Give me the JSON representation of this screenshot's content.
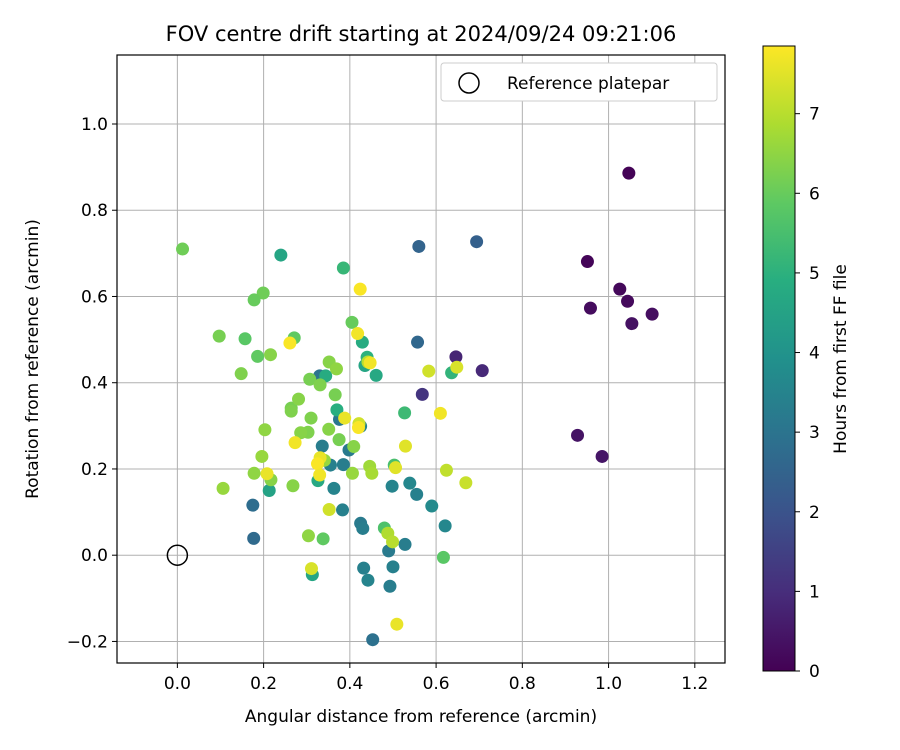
{
  "chart_data": {
    "type": "scatter",
    "title": "FOV centre drift starting at 2024/09/24 09:21:06",
    "xlabel": "Angular distance from reference (arcmin)",
    "ylabel": "Rotation from reference (arcmin)",
    "xlim": [
      -0.14,
      1.27
    ],
    "ylim": [
      -0.25,
      1.16
    ],
    "xticks": [
      "0.0",
      "0.2",
      "0.4",
      "0.6",
      "0.8",
      "1.0",
      "1.2"
    ],
    "yticks": [
      "−0.2",
      "0.0",
      "0.2",
      "0.4",
      "0.6",
      "0.8",
      "1.0"
    ],
    "grid": true,
    "legend": {
      "position": "top-right",
      "label": "Reference platepar"
    },
    "reference_point": {
      "x": 0.0,
      "y": 0.0
    },
    "colorbar": {
      "label": "Hours from first FF file",
      "range": [
        0,
        7.85
      ],
      "ticks": [
        "0",
        "1",
        "2",
        "3",
        "4",
        "5",
        "6",
        "7"
      ],
      "colormap": "viridis"
    },
    "points": [
      {
        "x": 1.047,
        "y": 0.886,
        "h": 0.05
      },
      {
        "x": 0.951,
        "y": 0.681,
        "h": 0.1
      },
      {
        "x": 1.026,
        "y": 0.617,
        "h": 0.15
      },
      {
        "x": 1.044,
        "y": 0.589,
        "h": 0.2
      },
      {
        "x": 0.958,
        "y": 0.573,
        "h": 0.25
      },
      {
        "x": 1.101,
        "y": 0.559,
        "h": 0.3
      },
      {
        "x": 1.054,
        "y": 0.537,
        "h": 0.35
      },
      {
        "x": 0.928,
        "y": 0.278,
        "h": 0.4
      },
      {
        "x": 0.985,
        "y": 0.229,
        "h": 0.45
      },
      {
        "x": 0.646,
        "y": 0.46,
        "h": 0.8
      },
      {
        "x": 0.707,
        "y": 0.428,
        "h": 0.9
      },
      {
        "x": 0.568,
        "y": 0.373,
        "h": 1.2
      },
      {
        "x": 0.694,
        "y": 0.727,
        "h": 2.4
      },
      {
        "x": 0.56,
        "y": 0.716,
        "h": 2.5
      },
      {
        "x": 0.557,
        "y": 0.494,
        "h": 2.6
      },
      {
        "x": 0.177,
        "y": 0.039,
        "h": 2.7
      },
      {
        "x": 0.175,
        "y": 0.116,
        "h": 2.8
      },
      {
        "x": 0.453,
        "y": -0.196,
        "h": 2.9
      },
      {
        "x": 0.33,
        "y": 0.416,
        "h": 3.0
      },
      {
        "x": 0.376,
        "y": 0.315,
        "h": 3.1
      },
      {
        "x": 0.398,
        "y": 0.244,
        "h": 3.2
      },
      {
        "x": 0.336,
        "y": 0.253,
        "h": 3.3
      },
      {
        "x": 0.383,
        "y": 0.105,
        "h": 3.4
      },
      {
        "x": 0.363,
        "y": 0.155,
        "h": 3.5
      },
      {
        "x": 0.385,
        "y": 0.21,
        "h": 3.3
      },
      {
        "x": 0.355,
        "y": 0.209,
        "h": 3.4
      },
      {
        "x": 0.425,
        "y": 0.074,
        "h": 3.2
      },
      {
        "x": 0.43,
        "y": 0.062,
        "h": 3.3
      },
      {
        "x": 0.432,
        "y": -0.03,
        "h": 3.4
      },
      {
        "x": 0.442,
        "y": -0.058,
        "h": 3.5
      },
      {
        "x": 0.49,
        "y": 0.01,
        "h": 3.2
      },
      {
        "x": 0.493,
        "y": -0.072,
        "h": 3.3
      },
      {
        "x": 0.5,
        "y": -0.027,
        "h": 3.4
      },
      {
        "x": 0.498,
        "y": 0.16,
        "h": 3.5
      },
      {
        "x": 0.528,
        "y": 0.025,
        "h": 3.3
      },
      {
        "x": 0.539,
        "y": 0.167,
        "h": 3.6
      },
      {
        "x": 0.555,
        "y": 0.141,
        "h": 3.4
      },
      {
        "x": 0.59,
        "y": 0.114,
        "h": 3.7
      },
      {
        "x": 0.621,
        "y": 0.068,
        "h": 3.6
      },
      {
        "x": 0.425,
        "y": 0.299,
        "h": 3.5
      },
      {
        "x": 0.213,
        "y": 0.15,
        "h": 4.5
      },
      {
        "x": 0.313,
        "y": -0.045,
        "h": 4.6
      },
      {
        "x": 0.326,
        "y": 0.173,
        "h": 4.7
      },
      {
        "x": 0.435,
        "y": 0.44,
        "h": 4.6
      },
      {
        "x": 0.429,
        "y": 0.494,
        "h": 4.8
      },
      {
        "x": 0.37,
        "y": 0.337,
        "h": 4.9
      },
      {
        "x": 0.461,
        "y": 0.417,
        "h": 4.7
      },
      {
        "x": 0.344,
        "y": 0.416,
        "h": 4.8
      },
      {
        "x": 0.24,
        "y": 0.696,
        "h": 4.6
      },
      {
        "x": 0.385,
        "y": 0.666,
        "h": 5.2
      },
      {
        "x": 0.636,
        "y": 0.423,
        "h": 5.1
      },
      {
        "x": 0.527,
        "y": 0.33,
        "h": 5.3
      },
      {
        "x": 0.44,
        "y": 0.459,
        "h": 5.0
      },
      {
        "x": 0.503,
        "y": 0.209,
        "h": 5.5
      },
      {
        "x": 0.48,
        "y": 0.063,
        "h": 5.6
      },
      {
        "x": 0.338,
        "y": 0.038,
        "h": 5.9
      },
      {
        "x": 0.617,
        "y": -0.005,
        "h": 5.8
      },
      {
        "x": 0.405,
        "y": 0.54,
        "h": 6.0
      },
      {
        "x": 0.271,
        "y": 0.504,
        "h": 5.9
      },
      {
        "x": 0.157,
        "y": 0.502,
        "h": 5.8
      },
      {
        "x": 0.186,
        "y": 0.461,
        "h": 5.9
      },
      {
        "x": 0.199,
        "y": 0.608,
        "h": 6.1
      },
      {
        "x": 0.178,
        "y": 0.592,
        "h": 6.0
      },
      {
        "x": 0.012,
        "y": 0.71,
        "h": 6.1
      },
      {
        "x": 0.097,
        "y": 0.508,
        "h": 6.2
      },
      {
        "x": 0.148,
        "y": 0.421,
        "h": 6.3
      },
      {
        "x": 0.216,
        "y": 0.465,
        "h": 6.4
      },
      {
        "x": 0.264,
        "y": 0.341,
        "h": 6.2
      },
      {
        "x": 0.264,
        "y": 0.334,
        "h": 6.3
      },
      {
        "x": 0.281,
        "y": 0.362,
        "h": 6.4
      },
      {
        "x": 0.307,
        "y": 0.408,
        "h": 6.2
      },
      {
        "x": 0.331,
        "y": 0.395,
        "h": 6.3
      },
      {
        "x": 0.352,
        "y": 0.448,
        "h": 6.4
      },
      {
        "x": 0.366,
        "y": 0.372,
        "h": 6.2
      },
      {
        "x": 0.31,
        "y": 0.318,
        "h": 6.3
      },
      {
        "x": 0.351,
        "y": 0.292,
        "h": 6.4
      },
      {
        "x": 0.375,
        "y": 0.268,
        "h": 6.2
      },
      {
        "x": 0.303,
        "y": 0.285,
        "h": 6.3
      },
      {
        "x": 0.286,
        "y": 0.284,
        "h": 6.4
      },
      {
        "x": 0.203,
        "y": 0.291,
        "h": 6.5
      },
      {
        "x": 0.196,
        "y": 0.229,
        "h": 6.6
      },
      {
        "x": 0.217,
        "y": 0.175,
        "h": 6.4
      },
      {
        "x": 0.178,
        "y": 0.19,
        "h": 6.5
      },
      {
        "x": 0.106,
        "y": 0.155,
        "h": 6.6
      },
      {
        "x": 0.268,
        "y": 0.161,
        "h": 6.4
      },
      {
        "x": 0.304,
        "y": 0.045,
        "h": 6.5
      },
      {
        "x": 0.341,
        "y": 0.22,
        "h": 6.6
      },
      {
        "x": 0.369,
        "y": 0.432,
        "h": 6.5
      },
      {
        "x": 0.409,
        "y": 0.252,
        "h": 6.4
      },
      {
        "x": 0.406,
        "y": 0.19,
        "h": 6.6
      },
      {
        "x": 0.446,
        "y": 0.206,
        "h": 6.7
      },
      {
        "x": 0.451,
        "y": 0.19,
        "h": 6.8
      },
      {
        "x": 0.442,
        "y": 0.448,
        "h": 7.0
      },
      {
        "x": 0.488,
        "y": 0.051,
        "h": 6.9
      },
      {
        "x": 0.499,
        "y": 0.031,
        "h": 7.0
      },
      {
        "x": 0.624,
        "y": 0.197,
        "h": 7.1
      },
      {
        "x": 0.669,
        "y": 0.168,
        "h": 7.2
      },
      {
        "x": 0.583,
        "y": 0.427,
        "h": 7.3
      },
      {
        "x": 0.648,
        "y": 0.436,
        "h": 7.4
      },
      {
        "x": 0.421,
        "y": 0.305,
        "h": 7.3
      },
      {
        "x": 0.311,
        "y": -0.031,
        "h": 7.4
      },
      {
        "x": 0.352,
        "y": 0.106,
        "h": 7.3
      },
      {
        "x": 0.506,
        "y": 0.203,
        "h": 7.5
      },
      {
        "x": 0.509,
        "y": -0.16,
        "h": 7.6
      },
      {
        "x": 0.529,
        "y": 0.253,
        "h": 7.5
      },
      {
        "x": 0.61,
        "y": 0.329,
        "h": 7.7
      },
      {
        "x": 0.424,
        "y": 0.617,
        "h": 7.8
      },
      {
        "x": 0.418,
        "y": 0.514,
        "h": 7.7
      },
      {
        "x": 0.261,
        "y": 0.492,
        "h": 7.8
      },
      {
        "x": 0.447,
        "y": 0.446,
        "h": 7.7
      },
      {
        "x": 0.388,
        "y": 0.318,
        "h": 7.6
      },
      {
        "x": 0.42,
        "y": 0.296,
        "h": 7.8
      },
      {
        "x": 0.273,
        "y": 0.261,
        "h": 7.7
      },
      {
        "x": 0.331,
        "y": 0.226,
        "h": 7.6
      },
      {
        "x": 0.325,
        "y": 0.212,
        "h": 7.8
      },
      {
        "x": 0.33,
        "y": 0.186,
        "h": 7.7
      },
      {
        "x": 0.208,
        "y": 0.189,
        "h": 7.6
      }
    ]
  }
}
